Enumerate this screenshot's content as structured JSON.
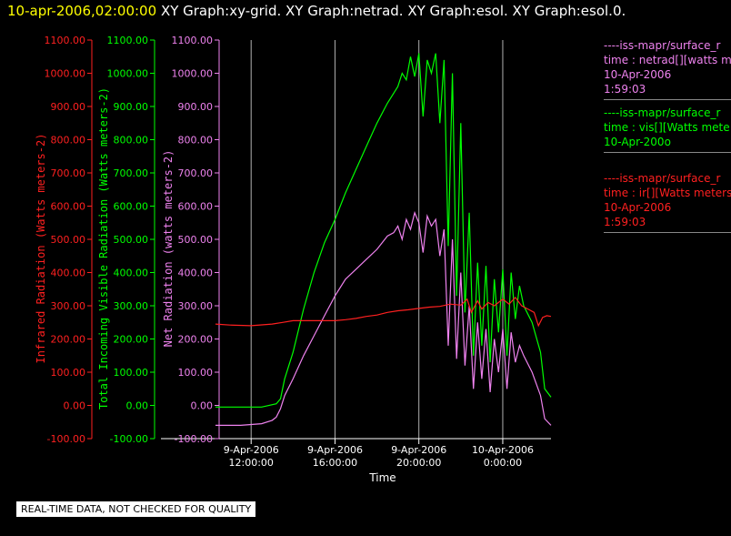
{
  "header": {
    "timestamp": "10-apr-2006,02:00:00",
    "graphs": "XY Graph:xy-grid.  XY Graph:netrad.  XY Graph:esol.  XY Graph:esol.0."
  },
  "notice": "REAL-TIME DATA, NOT CHECKED FOR QUALITY",
  "colors": {
    "ir": "#ff2020",
    "vis": "#00ff00",
    "net": "#ee82ee",
    "axis": "#ffffff",
    "grid": "#b0b0b0"
  },
  "legend": [
    {
      "color": "#ee82ee",
      "lines": [
        "----iss-mapr/surface_r",
        "time : netrad[][watts m",
        "10-Apr-2006",
        "1:59:03"
      ]
    },
    {
      "color": "#00ff00",
      "lines": [
        "----iss-mapr/surface_r",
        "time : vis[][Watts mete",
        "10-Apr-200o"
      ]
    },
    {
      "color": "#ff2020",
      "lines": [
        "----iss-mapr/surface_r",
        "time : ir[][Watts meters",
        "10-Apr-2006",
        "1:59:03"
      ]
    }
  ],
  "chart_data": {
    "type": "line",
    "xlabel": "Time",
    "x_ticks": [
      {
        "hours": 12,
        "line1": "9-Apr-2006",
        "line2": "12:00:00"
      },
      {
        "hours": 16,
        "line1": "9-Apr-2006",
        "line2": "16:00:00"
      },
      {
        "hours": 20,
        "line1": "9-Apr-2006",
        "line2": "20:00:00"
      },
      {
        "hours": 24,
        "line1": "10-Apr-2006",
        "line2": "0:00:00"
      }
    ],
    "xlim_hours": [
      10.3,
      26.3
    ],
    "x_unit_note": "hours on 9-Apr-2006",
    "axes": [
      {
        "id": "ir",
        "label": "Infrared Radiation (Watts meters-2)",
        "ylim": [
          -100,
          1100
        ],
        "ticks": [
          "-100.00",
          "0.00",
          "100.00",
          "200.00",
          "300.00",
          "400.00",
          "500.00",
          "600.00",
          "700.00",
          "800.00",
          "900.00",
          "1000.00",
          "1100.00"
        ]
      },
      {
        "id": "vis",
        "label": "Total Incoming Visible Radiation (Watts meters-2)",
        "ylim": [
          -100,
          1100
        ],
        "ticks": [
          "-100.00",
          "0.00",
          "100.00",
          "200.00",
          "300.00",
          "400.00",
          "500.00",
          "600.00",
          "700.00",
          "800.00",
          "900.00",
          "1000.00",
          "1100.00"
        ]
      },
      {
        "id": "net",
        "label": "Net Radiation (watts meters-2)",
        "ylim": [
          -100,
          1100
        ],
        "ticks": [
          "-100.00",
          "0.00",
          "100.00",
          "200.00",
          "300.00",
          "400.00",
          "500.00",
          "600.00",
          "700.00",
          "800.00",
          "900.00",
          "1000.00",
          "1100.00"
        ]
      }
    ],
    "series": [
      {
        "id": "vis",
        "points": [
          [
            10.3,
            -5
          ],
          [
            11.5,
            -5
          ],
          [
            12.5,
            -5
          ],
          [
            13.2,
            5
          ],
          [
            13.4,
            20
          ],
          [
            13.6,
            80
          ],
          [
            14.0,
            160
          ],
          [
            14.5,
            290
          ],
          [
            15.0,
            400
          ],
          [
            15.5,
            490
          ],
          [
            16.0,
            560
          ],
          [
            16.5,
            640
          ],
          [
            17.0,
            710
          ],
          [
            17.5,
            780
          ],
          [
            18.0,
            850
          ],
          [
            18.5,
            910
          ],
          [
            18.8,
            940
          ],
          [
            19.0,
            960
          ],
          [
            19.2,
            1000
          ],
          [
            19.4,
            980
          ],
          [
            19.6,
            1050
          ],
          [
            19.8,
            990
          ],
          [
            20.0,
            1060
          ],
          [
            20.2,
            870
          ],
          [
            20.4,
            1040
          ],
          [
            20.6,
            1000
          ],
          [
            20.8,
            1060
          ],
          [
            21.0,
            850
          ],
          [
            21.2,
            1040
          ],
          [
            21.4,
            480
          ],
          [
            21.6,
            1000
          ],
          [
            21.8,
            330
          ],
          [
            22.0,
            850
          ],
          [
            22.2,
            280
          ],
          [
            22.4,
            580
          ],
          [
            22.6,
            150
          ],
          [
            22.8,
            430
          ],
          [
            23.0,
            180
          ],
          [
            23.2,
            420
          ],
          [
            23.4,
            130
          ],
          [
            23.6,
            380
          ],
          [
            23.8,
            220
          ],
          [
            24.0,
            410
          ],
          [
            24.2,
            150
          ],
          [
            24.4,
            400
          ],
          [
            24.6,
            260
          ],
          [
            24.8,
            360
          ],
          [
            25.0,
            300
          ],
          [
            25.4,
            250
          ],
          [
            25.8,
            160
          ],
          [
            26.0,
            50
          ],
          [
            26.3,
            25
          ]
        ]
      },
      {
        "id": "net",
        "points": [
          [
            10.3,
            -60
          ],
          [
            11.5,
            -60
          ],
          [
            12.5,
            -55
          ],
          [
            13.0,
            -45
          ],
          [
            13.2,
            -35
          ],
          [
            13.4,
            -10
          ],
          [
            13.6,
            30
          ],
          [
            14.0,
            80
          ],
          [
            14.5,
            150
          ],
          [
            15.0,
            210
          ],
          [
            15.5,
            270
          ],
          [
            16.0,
            330
          ],
          [
            16.5,
            380
          ],
          [
            17.0,
            410
          ],
          [
            17.5,
            440
          ],
          [
            18.0,
            470
          ],
          [
            18.5,
            510
          ],
          [
            18.8,
            520
          ],
          [
            19.0,
            540
          ],
          [
            19.2,
            500
          ],
          [
            19.4,
            560
          ],
          [
            19.6,
            530
          ],
          [
            19.8,
            580
          ],
          [
            20.0,
            550
          ],
          [
            20.2,
            460
          ],
          [
            20.4,
            570
          ],
          [
            20.6,
            540
          ],
          [
            20.8,
            560
          ],
          [
            21.0,
            450
          ],
          [
            21.2,
            530
          ],
          [
            21.4,
            180
          ],
          [
            21.6,
            500
          ],
          [
            21.8,
            140
          ],
          [
            22.0,
            400
          ],
          [
            22.2,
            120
          ],
          [
            22.4,
            300
          ],
          [
            22.6,
            50
          ],
          [
            22.8,
            250
          ],
          [
            23.0,
            80
          ],
          [
            23.2,
            230
          ],
          [
            23.4,
            40
          ],
          [
            23.6,
            200
          ],
          [
            23.8,
            100
          ],
          [
            24.0,
            230
          ],
          [
            24.2,
            50
          ],
          [
            24.4,
            220
          ],
          [
            24.6,
            130
          ],
          [
            24.8,
            180
          ],
          [
            25.0,
            150
          ],
          [
            25.4,
            100
          ],
          [
            25.8,
            30
          ],
          [
            26.0,
            -40
          ],
          [
            26.3,
            -60
          ]
        ]
      },
      {
        "id": "ir",
        "points": [
          [
            10.3,
            245
          ],
          [
            11.0,
            242
          ],
          [
            12.0,
            240
          ],
          [
            13.0,
            245
          ],
          [
            13.5,
            250
          ],
          [
            14.0,
            255
          ],
          [
            15.0,
            255
          ],
          [
            16.0,
            255
          ],
          [
            16.5,
            258
          ],
          [
            17.0,
            262
          ],
          [
            17.5,
            268
          ],
          [
            18.0,
            272
          ],
          [
            18.5,
            280
          ],
          [
            19.0,
            285
          ],
          [
            19.5,
            288
          ],
          [
            20.0,
            292
          ],
          [
            20.5,
            296
          ],
          [
            21.0,
            298
          ],
          [
            21.5,
            305
          ],
          [
            22.0,
            302
          ],
          [
            22.3,
            320
          ],
          [
            22.5,
            280
          ],
          [
            22.8,
            315
          ],
          [
            23.0,
            290
          ],
          [
            23.3,
            310
          ],
          [
            23.6,
            300
          ],
          [
            24.0,
            320
          ],
          [
            24.3,
            305
          ],
          [
            24.6,
            325
          ],
          [
            24.9,
            300
          ],
          [
            25.2,
            290
          ],
          [
            25.5,
            280
          ],
          [
            25.7,
            240
          ],
          [
            25.9,
            265
          ],
          [
            26.1,
            270
          ],
          [
            26.3,
            268
          ]
        ]
      }
    ]
  }
}
